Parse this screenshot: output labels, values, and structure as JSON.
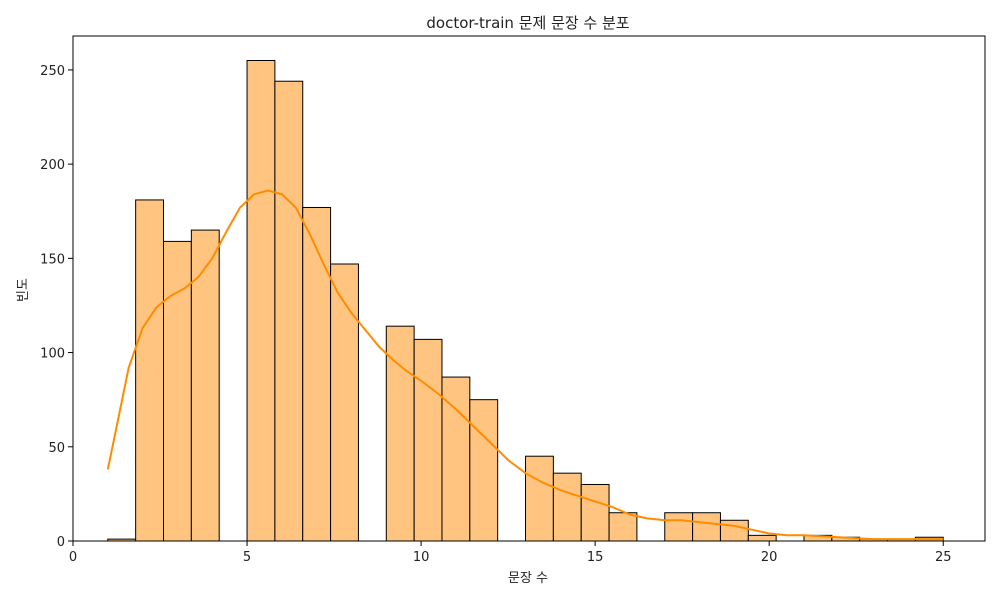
{
  "chart_data": {
    "type": "histogram",
    "title": "doctor-train 문제 문장 수 분포",
    "xlabel": "문장 수",
    "ylabel": "빈도",
    "xlim": [
      0,
      26.2
    ],
    "ylim": [
      0,
      268
    ],
    "xticks": [
      0,
      5,
      10,
      15,
      20,
      25
    ],
    "yticks": [
      0,
      50,
      100,
      150,
      200,
      250
    ],
    "bin_start": 1,
    "bin_width": 0.8,
    "bins": [
      {
        "x0": 1.0,
        "count": 1
      },
      {
        "x0": 1.8,
        "count": 181
      },
      {
        "x0": 2.6,
        "count": 159
      },
      {
        "x0": 3.4,
        "count": 165
      },
      {
        "x0": 4.2,
        "count": 0
      },
      {
        "x0": 5.0,
        "count": 255
      },
      {
        "x0": 5.8,
        "count": 244
      },
      {
        "x0": 6.6,
        "count": 177
      },
      {
        "x0": 7.4,
        "count": 147
      },
      {
        "x0": 8.2,
        "count": 0
      },
      {
        "x0": 9.0,
        "count": 114
      },
      {
        "x0": 9.8,
        "count": 107
      },
      {
        "x0": 10.6,
        "count": 87
      },
      {
        "x0": 11.4,
        "count": 75
      },
      {
        "x0": 12.2,
        "count": 0
      },
      {
        "x0": 13.0,
        "count": 45
      },
      {
        "x0": 13.8,
        "count": 36
      },
      {
        "x0": 14.6,
        "count": 30
      },
      {
        "x0": 15.4,
        "count": 15
      },
      {
        "x0": 16.2,
        "count": 0
      },
      {
        "x0": 17.0,
        "count": 15
      },
      {
        "x0": 17.8,
        "count": 15
      },
      {
        "x0": 18.6,
        "count": 11
      },
      {
        "x0": 19.4,
        "count": 3
      },
      {
        "x0": 20.2,
        "count": 0
      },
      {
        "x0": 21.0,
        "count": 3
      },
      {
        "x0": 21.8,
        "count": 2
      },
      {
        "x0": 22.6,
        "count": 1
      },
      {
        "x0": 23.4,
        "count": 1
      },
      {
        "x0": 24.2,
        "count": 2
      }
    ],
    "kde": [
      [
        1.0,
        38
      ],
      [
        1.3,
        65
      ],
      [
        1.6,
        92
      ],
      [
        2.0,
        113
      ],
      [
        2.4,
        124
      ],
      [
        2.8,
        130
      ],
      [
        3.2,
        134
      ],
      [
        3.6,
        140
      ],
      [
        4.0,
        150
      ],
      [
        4.4,
        164
      ],
      [
        4.8,
        177
      ],
      [
        5.2,
        184
      ],
      [
        5.6,
        186
      ],
      [
        6.0,
        184
      ],
      [
        6.4,
        177
      ],
      [
        6.8,
        163
      ],
      [
        7.2,
        147
      ],
      [
        7.6,
        132
      ],
      [
        8.0,
        121
      ],
      [
        8.4,
        112
      ],
      [
        8.8,
        103
      ],
      [
        9.2,
        96
      ],
      [
        9.6,
        90
      ],
      [
        10.0,
        85
      ],
      [
        10.5,
        78
      ],
      [
        11.0,
        70
      ],
      [
        11.5,
        61
      ],
      [
        12.0,
        52
      ],
      [
        12.5,
        43
      ],
      [
        13.0,
        36
      ],
      [
        13.5,
        31
      ],
      [
        14.0,
        27
      ],
      [
        14.5,
        24
      ],
      [
        15.0,
        21
      ],
      [
        15.5,
        18
      ],
      [
        16.0,
        14
      ],
      [
        16.5,
        12
      ],
      [
        17.0,
        11
      ],
      [
        17.5,
        11
      ],
      [
        18.0,
        10
      ],
      [
        18.5,
        9
      ],
      [
        19.0,
        8
      ],
      [
        19.5,
        6
      ],
      [
        20.0,
        4
      ],
      [
        20.5,
        3
      ],
      [
        21.0,
        3
      ],
      [
        21.5,
        2.5
      ],
      [
        22.0,
        2
      ],
      [
        22.5,
        1.5
      ],
      [
        23.0,
        1
      ],
      [
        23.5,
        1
      ],
      [
        24.0,
        1
      ],
      [
        24.5,
        1
      ],
      [
        25.0,
        1
      ]
    ],
    "bar_color": "#ffc580",
    "bar_edge": "#000000",
    "kde_color": "#ff8c00",
    "grid": false,
    "legend": "none"
  }
}
